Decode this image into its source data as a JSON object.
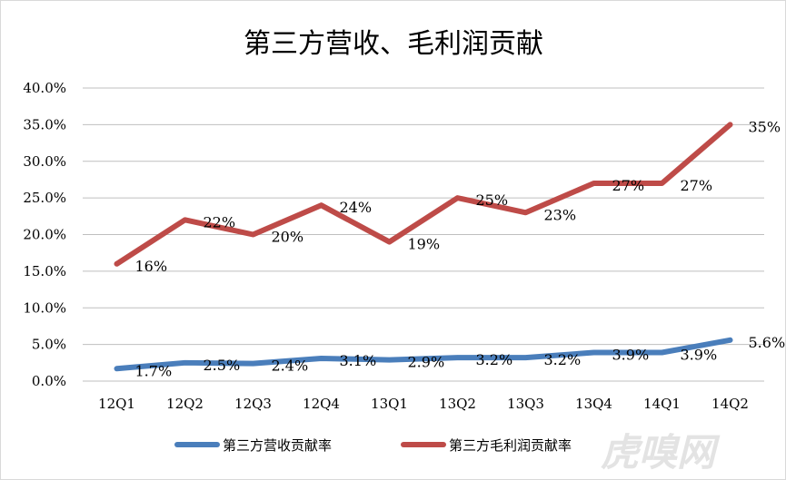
{
  "chart_data": {
    "type": "line",
    "title": "第三方营收、毛利润贡献",
    "categories": [
      "12Q1",
      "12Q2",
      "12Q3",
      "12Q4",
      "13Q1",
      "13Q2",
      "13Q3",
      "13Q4",
      "14Q1",
      "14Q2"
    ],
    "ylim": [
      0,
      40
    ],
    "yticks": [
      "0.0%",
      "5.0%",
      "10.0%",
      "15.0%",
      "20.0%",
      "25.0%",
      "30.0%",
      "35.0%",
      "40.0%"
    ],
    "grid": true,
    "legend_position": "bottom",
    "series": [
      {
        "name": "第三方营收贡献率",
        "color": "#4a7ebb",
        "values": [
          1.7,
          2.5,
          2.4,
          3.1,
          2.9,
          3.2,
          3.2,
          3.9,
          3.9,
          5.6
        ],
        "labels": [
          "1.7%",
          "2.5%",
          "2.4%",
          "3.1%",
          "2.9%",
          "3.2%",
          "3.2%",
          "3.9%",
          "3.9%",
          "5.6%"
        ]
      },
      {
        "name": "第三方毛利润贡献率",
        "color": "#be4b48",
        "values": [
          16,
          22,
          20,
          24,
          19,
          25,
          23,
          27,
          27,
          35
        ],
        "labels": [
          "16%",
          "22%",
          "20%",
          "24%",
          "19%",
          "25%",
          "23%",
          "27%",
          "27%",
          "35%"
        ]
      }
    ]
  },
  "watermark": "虎嗅网"
}
